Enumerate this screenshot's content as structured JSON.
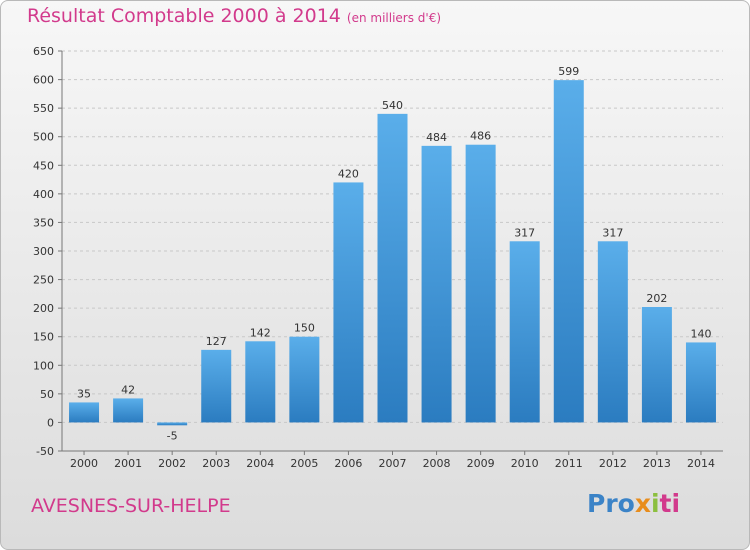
{
  "chart_data": {
    "type": "bar",
    "title": "Résultat Comptable 2000 à 2014",
    "subtitle": "(en milliers d'€)",
    "categories": [
      "2000",
      "2001",
      "2002",
      "2003",
      "2004",
      "2005",
      "2006",
      "2007",
      "2008",
      "2009",
      "2010",
      "2011",
      "2012",
      "2013",
      "2014"
    ],
    "values": [
      35,
      42,
      -5,
      127,
      142,
      150,
      420,
      540,
      484,
      486,
      317,
      599,
      317,
      202,
      140
    ],
    "ylim": [
      -50,
      650
    ],
    "yticks": [
      -50,
      0,
      50,
      100,
      150,
      200,
      250,
      300,
      350,
      400,
      450,
      500,
      550,
      600,
      650
    ],
    "grid": true,
    "bar_color": "#3b8fd4"
  },
  "commune": "AVESNES-SUR-HELPE",
  "logo": {
    "p1": "Pro",
    "p2": "x",
    "p3": "i",
    "p4": "ti"
  }
}
